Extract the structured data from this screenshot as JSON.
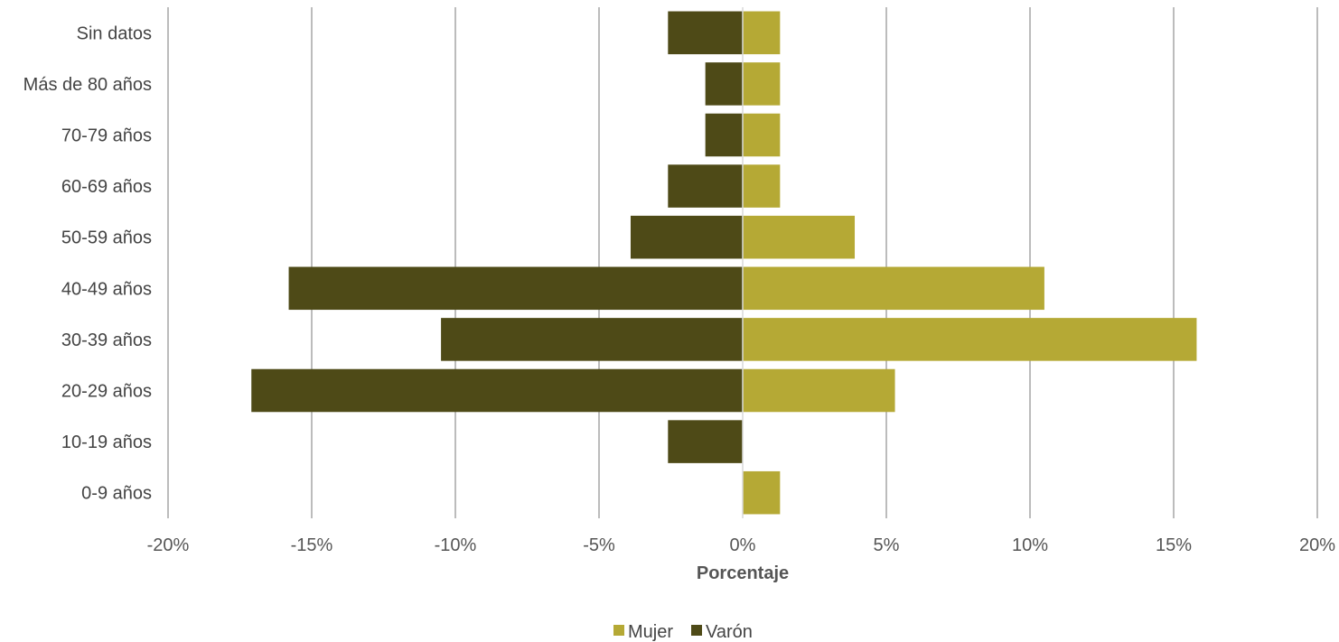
{
  "chart_data": {
    "type": "bar",
    "orientation": "horizontal",
    "categories": [
      "Sin datos",
      "Más de 80 años",
      "70-79 años",
      "60-69 años",
      "50-59 años",
      "40-49 años",
      "30-39 años",
      "20-29 años",
      "10-19 años",
      "0-9 años"
    ],
    "series": [
      {
        "name": "Mujer",
        "color": "#b5a935",
        "values": [
          1.3,
          1.3,
          1.3,
          1.3,
          3.9,
          10.5,
          15.8,
          5.3,
          0,
          1.3
        ]
      },
      {
        "name": "Varón",
        "color": "#4e4a17",
        "values": [
          -2.6,
          -1.3,
          -1.3,
          -2.6,
          -3.9,
          -15.8,
          -10.5,
          -17.1,
          -2.6,
          0
        ]
      }
    ],
    "xlabel": "Porcentaje",
    "xlim": [
      -20,
      20
    ],
    "xticks": [
      -20,
      -15,
      -10,
      -5,
      0,
      5,
      10,
      15,
      20
    ],
    "xtick_labels": [
      "-20%",
      "-15%",
      "-10%",
      "-5%",
      "0%",
      "5%",
      "10%",
      "15%",
      "20%"
    ],
    "grid": "vertical",
    "legend_position": "bottom"
  }
}
